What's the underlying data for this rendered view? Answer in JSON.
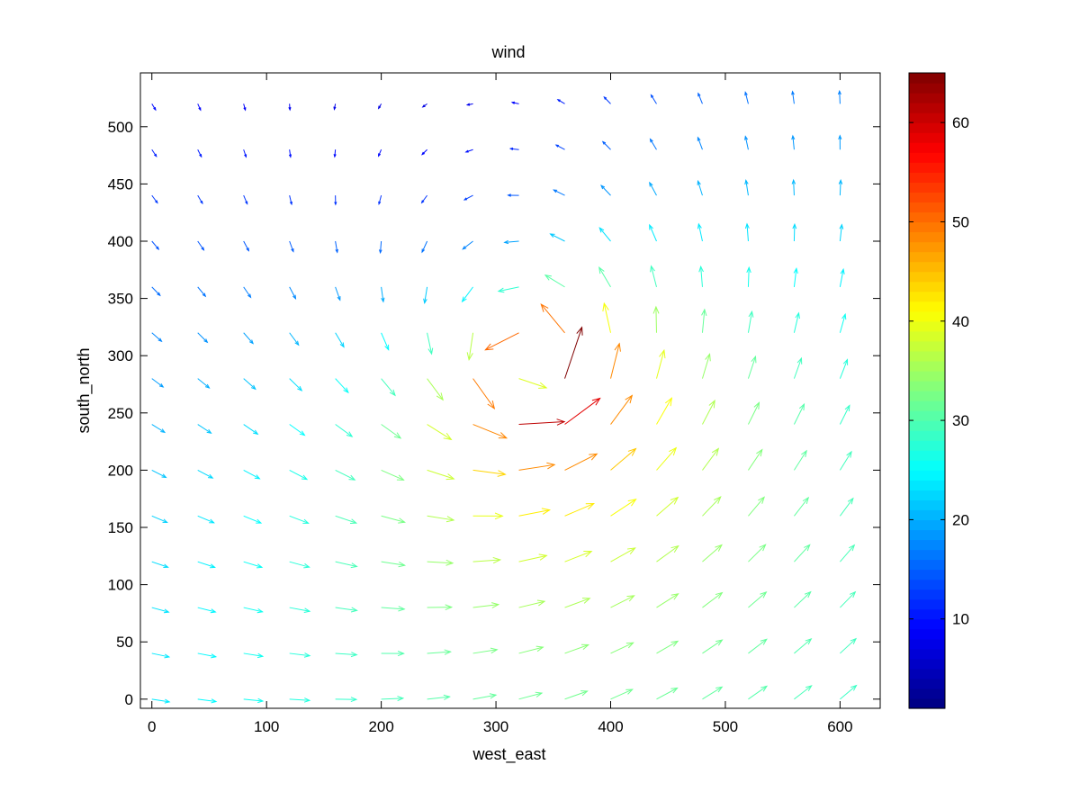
{
  "chart_data": {
    "type": "quiver",
    "title": "wind",
    "xlabel": "west_east",
    "ylabel": "south_north",
    "xlim": [
      -10,
      635
    ],
    "ylim": [
      -8,
      547
    ],
    "x_ticks": [
      0,
      100,
      200,
      300,
      400,
      500,
      600
    ],
    "y_ticks": [
      0,
      50,
      100,
      150,
      200,
      250,
      300,
      350,
      400,
      450,
      500
    ],
    "grid": false,
    "grid_spacing": 40,
    "colorbar": {
      "colormap": "jet",
      "range": [
        1,
        65
      ],
      "ticks": [
        10,
        20,
        30,
        40,
        50,
        60
      ],
      "placement": "right"
    },
    "vortex_center": [
      330,
      290
    ],
    "vortex_radius_of_max_wind": 30,
    "max_speed": 65,
    "background_wind": [
      12,
      6
    ],
    "note_arrows": "arrow at each grid point (x, y) with vector (u, v) in data units"
  }
}
